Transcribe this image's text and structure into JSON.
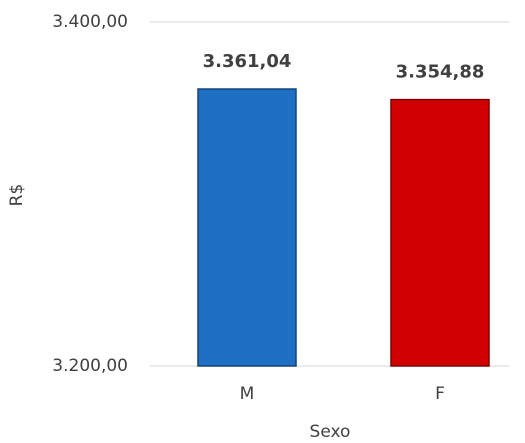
{
  "chart_data": {
    "type": "bar",
    "categories": [
      "M",
      "F"
    ],
    "values": [
      3361.04,
      3354.88
    ],
    "value_labels": [
      "3.361,04",
      "3.354,88"
    ],
    "colors": [
      "#1f6fc5",
      "#d00000"
    ],
    "xlabel": "Sexo",
    "ylabel": "R$",
    "ylim": [
      3200,
      3400
    ],
    "yticks": [
      {
        "value": 3200,
        "label": "3.200,00"
      },
      {
        "value": 3400,
        "label": "3.400,00"
      }
    ],
    "grid": true
  }
}
